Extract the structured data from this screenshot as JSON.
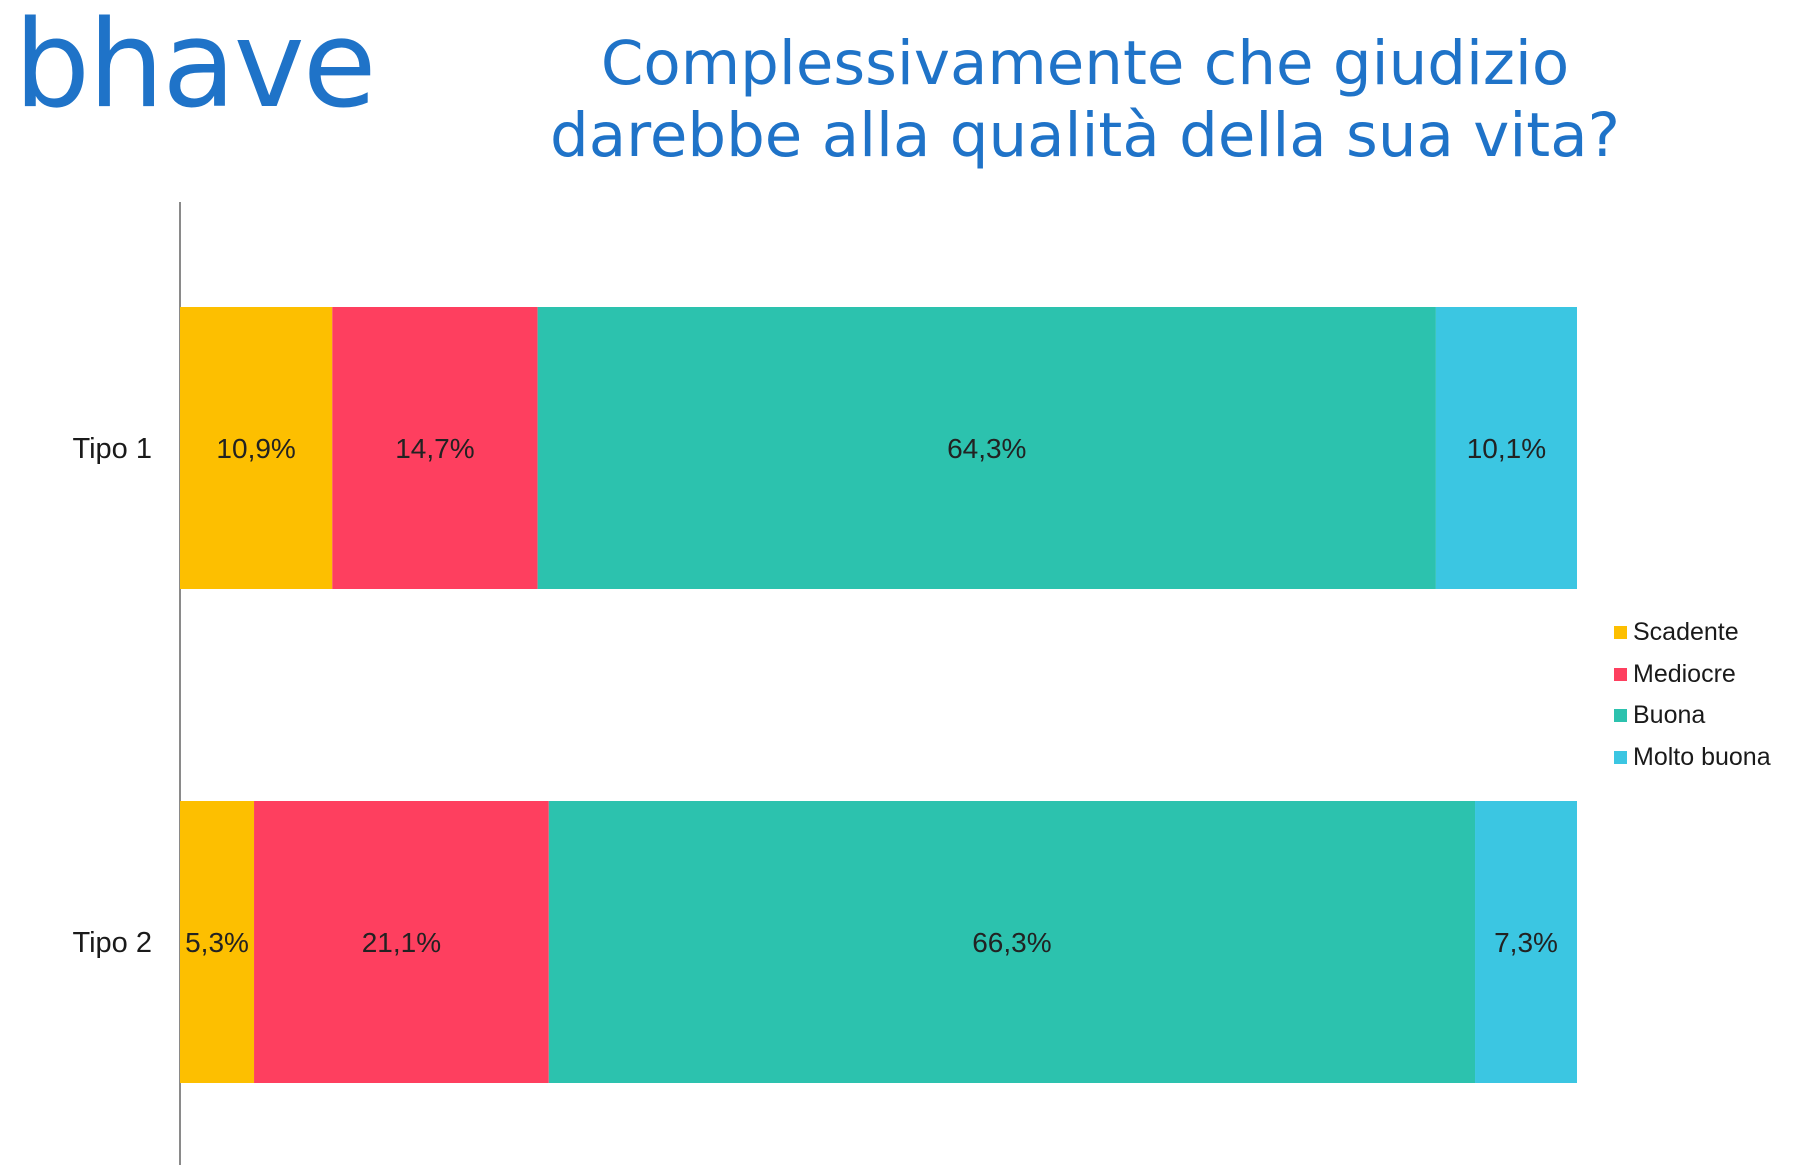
{
  "logo": "bhave",
  "title_lines": [
    "Complessivamente che giudizio",
    "darebbe alla qualità della sua vita?"
  ],
  "colors": {
    "brand": "#1f73c8",
    "Scadente": "#fdbf00",
    "Mediocre": "#fe3f5f",
    "Buona": "#2cc2ae",
    "Molto buona": "#3bc6e2"
  },
  "chart_data": {
    "type": "bar",
    "orientation": "horizontal",
    "stacked": true,
    "normalized_percent": true,
    "title": "Complessivamente che giudizio darebbe alla qualità della sua vita?",
    "categories": [
      "Tipo 1",
      "Tipo 2"
    ],
    "series": [
      {
        "name": "Scadente",
        "values": [
          10.9,
          5.3
        ],
        "labels": [
          "10,9%",
          "5,3%"
        ]
      },
      {
        "name": "Mediocre",
        "values": [
          14.7,
          21.1
        ],
        "labels": [
          "14,7%",
          "21,1%"
        ]
      },
      {
        "name": "Buona",
        "values": [
          64.3,
          66.3
        ],
        "labels": [
          "64,3%",
          "66,3%"
        ]
      },
      {
        "name": "Molto buona",
        "values": [
          10.1,
          7.3
        ],
        "labels": [
          "10,1%",
          "7,3%"
        ]
      }
    ],
    "xlim": [
      0,
      100
    ],
    "grid": false,
    "legend_position": "right"
  }
}
